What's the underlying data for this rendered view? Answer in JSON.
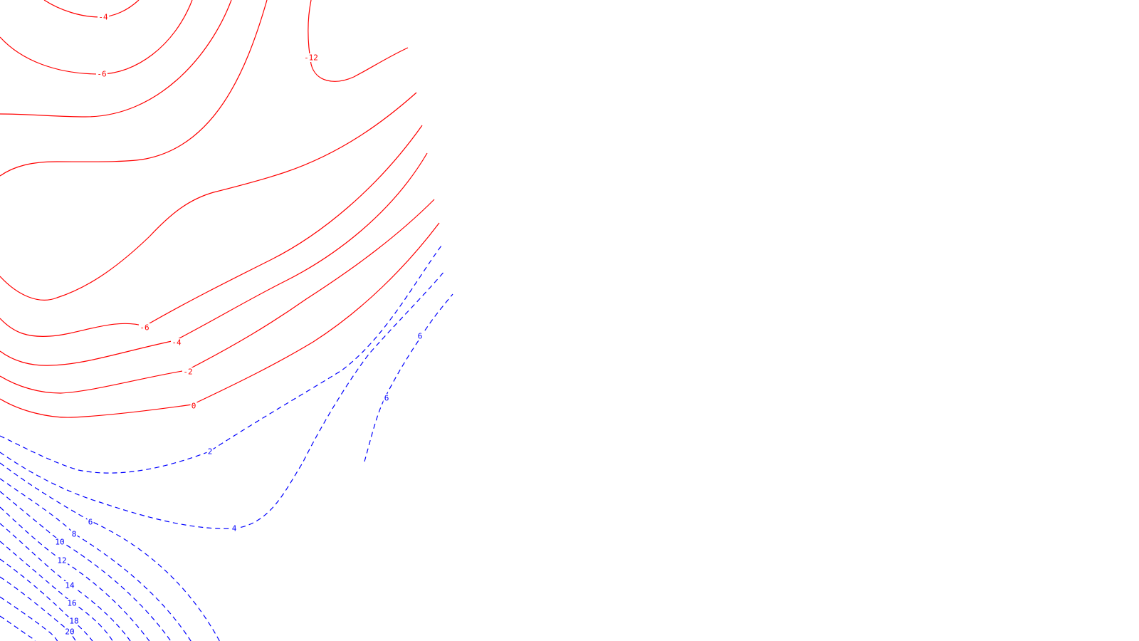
{
  "chart_data": {
    "type": "contour",
    "title": "",
    "xlabel": "",
    "ylabel": "",
    "grid": false,
    "legend": "none",
    "styles": {
      "negative": {
        "color": "#ff0000",
        "line": "solid"
      },
      "positive": {
        "color": "#0000ff",
        "line": "dashed"
      }
    },
    "contour_levels": {
      "negative": [
        -12,
        -6,
        -4,
        -2,
        0
      ],
      "positive": [
        2,
        4,
        6,
        8,
        10,
        12,
        14,
        16,
        18,
        20
      ]
    },
    "labels": [
      {
        "id": "n-4-top",
        "text": "-4",
        "sign": "negative"
      },
      {
        "id": "n-6-top",
        "text": "-6",
        "sign": "negative"
      },
      {
        "id": "n-12",
        "text": "-12",
        "sign": "negative"
      },
      {
        "id": "n-6-low",
        "text": "-6",
        "sign": "negative"
      },
      {
        "id": "n-4-low",
        "text": "-4",
        "sign": "negative"
      },
      {
        "id": "n-2-low",
        "text": "-2",
        "sign": "negative"
      },
      {
        "id": "n-0-low",
        "text": "0",
        "sign": "negative"
      },
      {
        "id": "p-2",
        "text": "2",
        "sign": "positive"
      },
      {
        "id": "p-4",
        "text": "4",
        "sign": "positive"
      },
      {
        "id": "p-6-right",
        "text": "6",
        "sign": "positive"
      },
      {
        "id": "p-6-mid",
        "text": "6",
        "sign": "positive"
      },
      {
        "id": "p-6-left",
        "text": "6",
        "sign": "positive"
      },
      {
        "id": "p-8",
        "text": "8",
        "sign": "positive"
      },
      {
        "id": "p-10",
        "text": "10",
        "sign": "positive"
      },
      {
        "id": "p-12",
        "text": "12",
        "sign": "positive"
      },
      {
        "id": "p-14",
        "text": "14",
        "sign": "positive"
      },
      {
        "id": "p-16",
        "text": "16",
        "sign": "positive"
      },
      {
        "id": "p-18",
        "text": "18",
        "sign": "positive"
      },
      {
        "id": "p-20",
        "text": "20",
        "sign": "positive"
      }
    ]
  }
}
